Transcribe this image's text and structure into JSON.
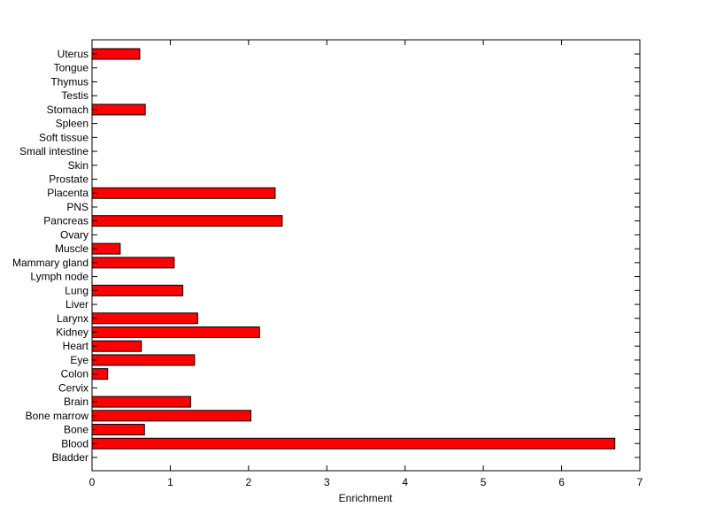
{
  "chart_data": {
    "type": "bar",
    "orientation": "horizontal",
    "categories": [
      "Bladder",
      "Blood",
      "Bone",
      "Bone marrow",
      "Brain",
      "Cervix",
      "Colon",
      "Eye",
      "Heart",
      "Kidney",
      "Larynx",
      "Liver",
      "Lung",
      "Lymph node",
      "Mammary gland",
      "Muscle",
      "Ovary",
      "Pancreas",
      "PNS",
      "Placenta",
      "Prostate",
      "Skin",
      "Small intestine",
      "Soft tissue",
      "Spleen",
      "Stomach",
      "Testis",
      "Thymus",
      "Tongue",
      "Uterus"
    ],
    "values": [
      0,
      6.68,
      0.67,
      2.03,
      1.26,
      0,
      0.2,
      1.31,
      0.63,
      2.14,
      1.35,
      0,
      1.16,
      0,
      1.05,
      0.36,
      0,
      2.43,
      0,
      2.34,
      0,
      0,
      0,
      0,
      0,
      0.68,
      0,
      0,
      0,
      0.61
    ],
    "xlabel": "Enrichment",
    "ylabel": "",
    "title": "",
    "xlim": [
      0,
      7
    ],
    "xticks": [
      "0",
      "1",
      "2",
      "3",
      "4",
      "5",
      "6",
      "7"
    ],
    "grid": false,
    "colors": {
      "bar_fill": "#ff0000",
      "bar_stroke": "#000000",
      "axis": "#000000"
    }
  }
}
